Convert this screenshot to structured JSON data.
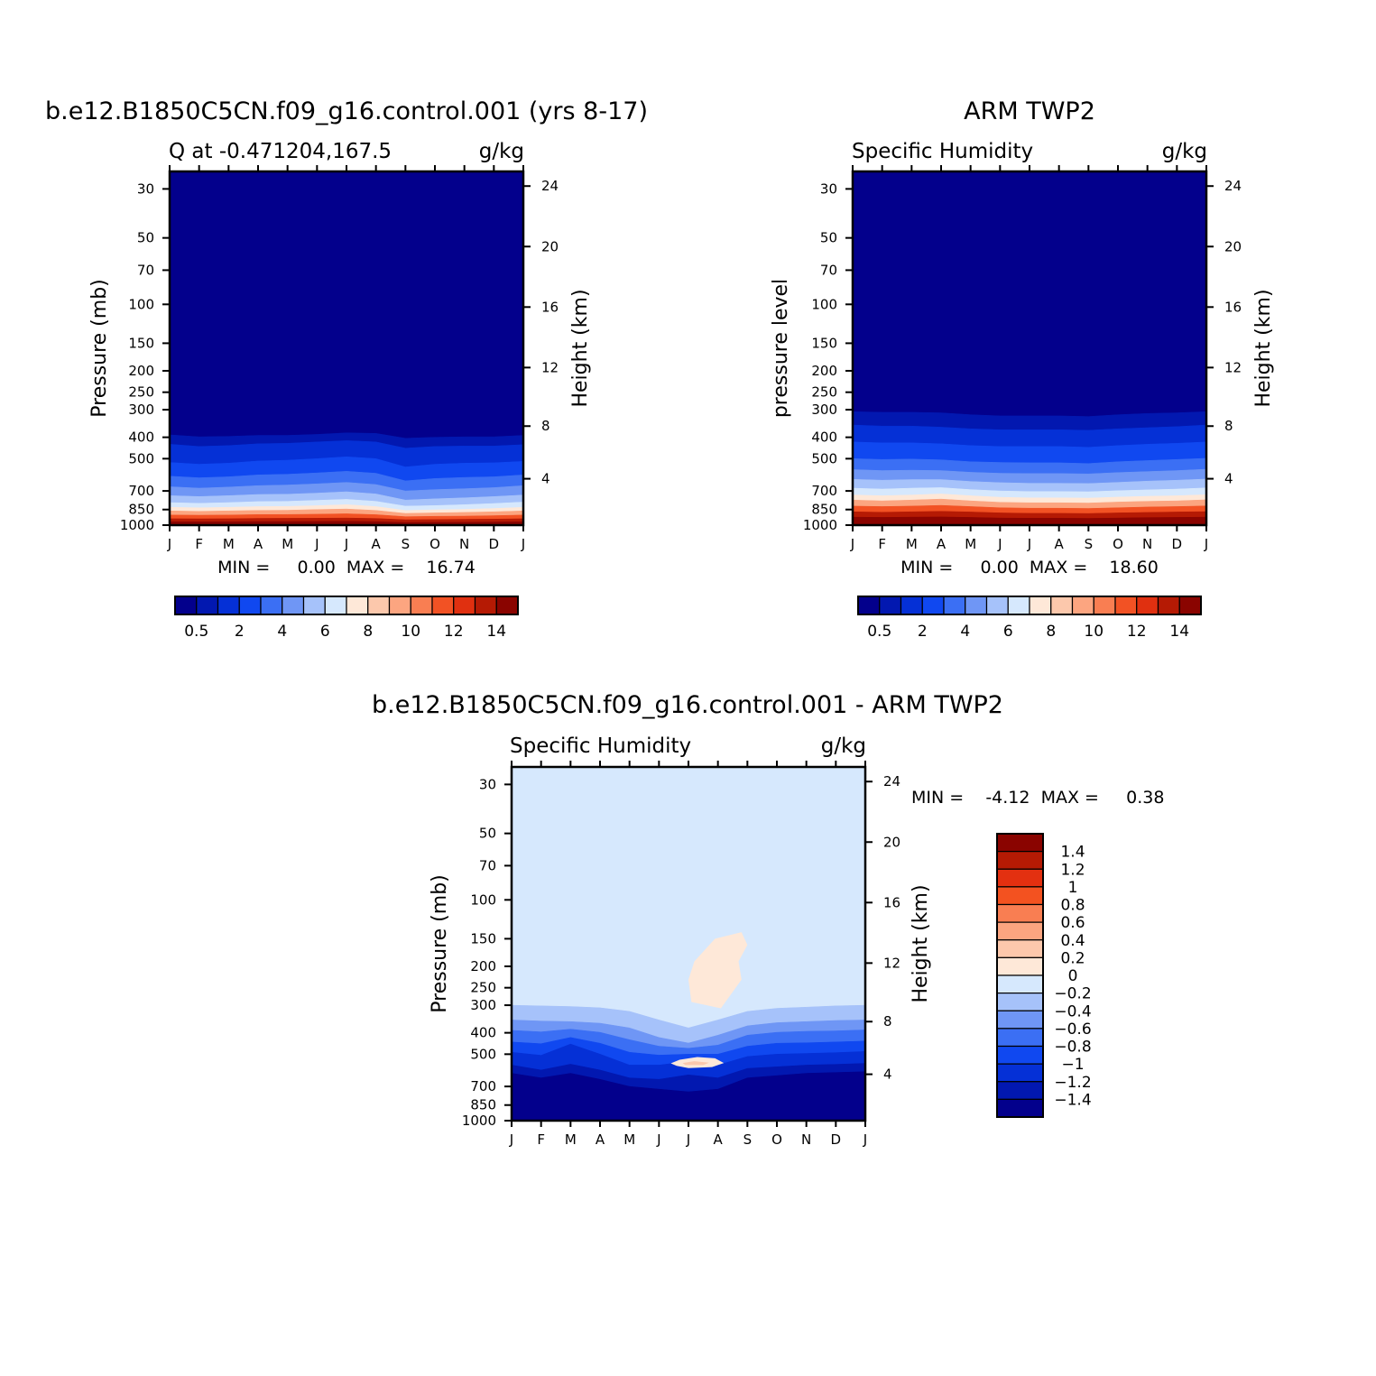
{
  "chart_data": [
    {
      "type": "contour",
      "title": "b.e12.B1850C5CN.f09_g16.control.001 (yrs 8-17)",
      "left_string": "Q at -0.471204,167.5",
      "right_string": "g/kg",
      "ylabel": "Pressure (mb)",
      "ylabel_right": "Height (km)",
      "x_ticks": [
        "J",
        "F",
        "M",
        "A",
        "M",
        "J",
        "J",
        "A",
        "S",
        "O",
        "N",
        "D",
        "J"
      ],
      "y_ticks": [
        "30",
        "50",
        "70",
        "100",
        "150",
        "200",
        "250",
        "300",
        "400",
        "500",
        "700",
        "850",
        "1000"
      ],
      "y_ticks_right": [
        "24",
        "20",
        "16",
        "12",
        "8",
        "4"
      ],
      "min_max": "MIN =     0.00  MAX =    16.74",
      "colorbar_labels": [
        "0.5",
        "2",
        "4",
        "6",
        "8",
        "10",
        "12",
        "14"
      ],
      "colorbar_orientation": "horizontal",
      "contour_pressures_mb": {
        "0.5": [
          390,
          398,
          396,
          392,
          392,
          388,
          382,
          384,
          404,
          400,
          398,
          398,
          392
        ],
        "1": [
          430,
          440,
          436,
          428,
          426,
          420,
          414,
          420,
          448,
          440,
          438,
          438,
          432
        ],
        "2": [
          520,
          530,
          524,
          512,
          508,
          500,
          490,
          500,
          545,
          530,
          524,
          522,
          514
        ],
        "3": [
          600,
          610,
          604,
          592,
          588,
          580,
          570,
          582,
          630,
          615,
          608,
          604,
          592
        ],
        "4": [
          670,
          680,
          672,
          662,
          658,
          650,
          640,
          655,
          700,
          690,
          684,
          676,
          662
        ],
        "5": [
          735,
          742,
          735,
          726,
          724,
          716,
          706,
          722,
          770,
          760,
          752,
          742,
          730
        ],
        "6": [
          790,
          796,
          790,
          782,
          780,
          772,
          764,
          780,
          820,
          815,
          808,
          798,
          786
        ],
        "7": [
          830,
          834,
          830,
          824,
          822,
          816,
          808,
          824,
          858,
          852,
          848,
          840,
          830
        ],
        "8": [
          862,
          866,
          862,
          858,
          856,
          850,
          845,
          858,
          885,
          880,
          876,
          870,
          862
        ],
        "10": [
          900,
          902,
          900,
          896,
          895,
          892,
          888,
          897,
          915,
          912,
          910,
          906,
          900
        ],
        "12": [
          935,
          936,
          935,
          932,
          931,
          930,
          928,
          933,
          945,
          943,
          941,
          939,
          935
        ],
        "14": [
          965,
          966,
          965,
          963,
          963,
          962,
          960,
          964,
          972,
          970,
          969,
          968,
          965
        ]
      }
    },
    {
      "type": "contour",
      "title": "ARM TWP2",
      "left_string": "Specific Humidity",
      "right_string": "g/kg",
      "ylabel": "pressure level",
      "ylabel_right": "Height (km)",
      "x_ticks": [
        "J",
        "F",
        "M",
        "A",
        "M",
        "J",
        "J",
        "A",
        "S",
        "O",
        "N",
        "D",
        "J"
      ],
      "y_ticks": [
        "30",
        "50",
        "70",
        "100",
        "150",
        "200",
        "250",
        "300",
        "400",
        "500",
        "700",
        "850",
        "1000"
      ],
      "y_ticks_right": [
        "24",
        "20",
        "16",
        "12",
        "8",
        "4"
      ],
      "min_max": "MIN =     0.00  MAX =    18.60",
      "colorbar_labels": [
        "0.5",
        "2",
        "4",
        "6",
        "8",
        "10",
        "12",
        "14"
      ],
      "colorbar_orientation": "horizontal",
      "contour_pressures_mb": {
        "0.5": [
          306,
          308,
          308,
          310,
          316,
          320,
          320,
          320,
          322,
          316,
          312,
          310,
          306
        ],
        "1": [
          352,
          356,
          356,
          360,
          366,
          370,
          370,
          370,
          372,
          366,
          362,
          358,
          352
        ],
        "2": [
          420,
          424,
          424,
          428,
          436,
          440,
          440,
          440,
          444,
          436,
          430,
          426,
          420
        ],
        "3": [
          500,
          504,
          502,
          506,
          516,
          520,
          522,
          522,
          526,
          516,
          510,
          504,
          498
        ],
        "4": [
          560,
          566,
          564,
          566,
          576,
          582,
          584,
          584,
          586,
          578,
          572,
          566,
          558
        ],
        "5": [
          620,
          626,
          622,
          622,
          634,
          642,
          646,
          646,
          648,
          640,
          632,
          626,
          618
        ],
        "6": [
          680,
          686,
          680,
          676,
          690,
          700,
          704,
          704,
          706,
          698,
          692,
          686,
          678
        ],
        "7": [
          730,
          736,
          730,
          722,
          736,
          748,
          752,
          752,
          754,
          746,
          740,
          736,
          728
        ],
        "8": [
          770,
          776,
          770,
          762,
          776,
          788,
          792,
          792,
          794,
          786,
          780,
          776,
          768
        ],
        "10": [
          820,
          824,
          820,
          814,
          824,
          834,
          838,
          838,
          840,
          834,
          828,
          824,
          818
        ],
        "12": [
          870,
          874,
          870,
          866,
          872,
          880,
          884,
          884,
          886,
          880,
          876,
          872,
          868
        ],
        "14": [
          920,
          922,
          920,
          918,
          922,
          928,
          930,
          930,
          932,
          928,
          924,
          922,
          920
        ]
      }
    },
    {
      "type": "contour",
      "title": "b.e12.B1850C5CN.f09_g16.control.001 - ARM TWP2",
      "left_string": "Specific Humidity",
      "right_string": "g/kg",
      "ylabel": "Pressure (mb)",
      "ylabel_right": "Height (km)",
      "x_ticks": [
        "J",
        "F",
        "M",
        "A",
        "M",
        "J",
        "J",
        "A",
        "S",
        "O",
        "N",
        "D",
        "J"
      ],
      "y_ticks": [
        "30",
        "50",
        "70",
        "100",
        "150",
        "200",
        "250",
        "300",
        "400",
        "500",
        "700",
        "850",
        "1000"
      ],
      "y_ticks_right": [
        "24",
        "20",
        "16",
        "12",
        "8",
        "4"
      ],
      "min_max": "MIN =    -4.12  MAX =     0.38",
      "colorbar_labels": [
        "1.4",
        "1.2",
        "1",
        "0.8",
        "0.6",
        "0.4",
        "0.2",
        "0",
        "-0.2",
        "-0.4",
        "-0.6",
        "-0.8",
        "-1",
        "-1.2",
        "-1.4"
      ],
      "colorbar_orientation": "vertical",
      "contour_pressures_mb": {
        "-0.2": [
          300,
          302,
          304,
          308,
          320,
          350,
          380,
          350,
          320,
          310,
          306,
          302,
          300
        ],
        "-0.4": [
          350,
          354,
          356,
          362,
          380,
          420,
          445,
          410,
          372,
          360,
          356,
          352,
          350
        ],
        "-0.6": [
          390,
          396,
          385,
          398,
          430,
          460,
          470,
          455,
          410,
          398,
          394,
          392,
          388
        ],
        "-0.8": [
          440,
          448,
          420,
          446,
          490,
          505,
          500,
          500,
          460,
          446,
          444,
          440,
          436
        ],
        "-1": [
          490,
          506,
          450,
          500,
          560,
          560,
          540,
          560,
          512,
          500,
          496,
          492,
          486
        ],
        "-1.2": [
          560,
          590,
          555,
          590,
          640,
          650,
          620,
          640,
          580,
          570,
          560,
          556,
          550
        ],
        "-1.4": [
          610,
          640,
          610,
          650,
          700,
          720,
          740,
          720,
          640,
          625,
          610,
          605,
          600
        ]
      },
      "positive_patches": [
        {
          "level": "0.2",
          "x_months": [
            6.0,
            6.2,
            6.9,
            7.8,
            8.0,
            7.7,
            7.8,
            7.1,
            6.1
          ],
          "p_mb": [
            230,
            190,
            150,
            140,
            160,
            190,
            230,
            310,
            290
          ]
        },
        {
          "level": "0.2",
          "x_months": [
            5.4,
            5.7,
            6.3,
            6.9,
            7.2,
            6.8,
            6.0,
            5.6
          ],
          "p_mb": [
            550,
            530,
            515,
            522,
            548,
            572,
            578,
            565
          ]
        },
        {
          "level": "0.4",
          "x_months": [
            5.8,
            6.2,
            6.7,
            6.5,
            5.9
          ],
          "p_mb": [
            548,
            538,
            546,
            560,
            560
          ]
        }
      ]
    }
  ],
  "colors": {
    "q_palette": [
      "#03008c",
      "#0218b0",
      "#0530d6",
      "#1048f0",
      "#3b6ff4",
      "#6f96f5",
      "#a6c2fa",
      "#d6e8fd",
      "#fee8d8",
      "#fcc8ac",
      "#fca580",
      "#f97e52",
      "#f25224",
      "#e03010",
      "#b51a04",
      "#8a0400"
    ],
    "diff_palette_top_to_bottom": [
      "#8a0400",
      "#b51a04",
      "#e33010",
      "#f35220",
      "#f97e52",
      "#fca580",
      "#fcc8ac",
      "#fee8d8",
      "#d6e8fd",
      "#a6c2fa",
      "#6f96f5",
      "#3b6ff4",
      "#1048f0",
      "#0530d6",
      "#0218b0",
      "#03008c"
    ]
  }
}
